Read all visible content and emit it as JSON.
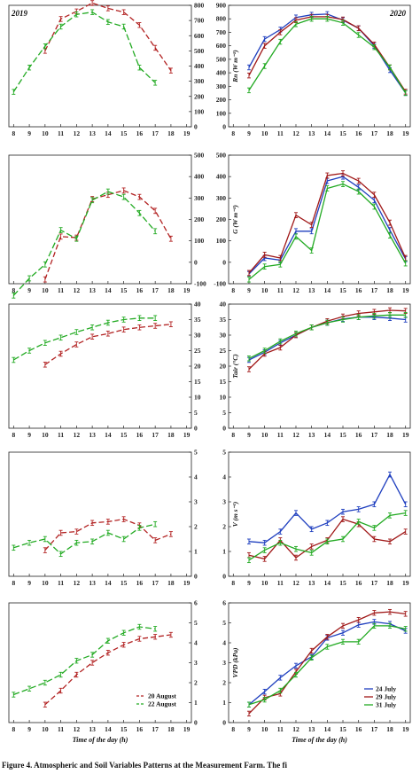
{
  "caption": "Figure 4. Atmospheric and Soil Variables Patterns at the Measurement Farm. The fi",
  "x_label": "Time of the day (h)",
  "years": {
    "left": "2019",
    "right": "2020"
  },
  "colors": {
    "20 August": "#b22222",
    "22 August": "#22aa22",
    "24 July": "#1f3fbf",
    "29 July": "#a01818",
    "31 July": "#22aa22"
  },
  "legend_2019": [
    "20 August",
    "22 August"
  ],
  "legend_2020": [
    "24 July",
    "29 July",
    "31 July"
  ],
  "chart_data": [
    {
      "type": "line",
      "panel": "2019-Rn",
      "x_ticks": [
        8,
        9,
        10,
        11,
        12,
        13,
        14,
        15,
        16,
        17,
        18,
        19
      ],
      "y_ticks": [
        0,
        100,
        200,
        300,
        400,
        500,
        600,
        700,
        800
      ],
      "ylim": [
        0,
        800
      ],
      "ylabel": "",
      "series": [
        {
          "name": "20 August",
          "x": [
            10,
            11,
            12,
            13,
            14,
            15,
            16,
            17,
            18
          ],
          "y": [
            500,
            710,
            760,
            815,
            780,
            755,
            670,
            520,
            370
          ]
        },
        {
          "name": "22 August",
          "x": [
            8,
            9,
            10,
            11,
            12,
            13,
            14,
            15,
            16,
            17
          ],
          "y": [
            230,
            390,
            530,
            660,
            740,
            755,
            690,
            660,
            390,
            290
          ]
        }
      ]
    },
    {
      "type": "line",
      "panel": "2020-Rn",
      "x_ticks": [
        8,
        9,
        10,
        11,
        12,
        13,
        14,
        15,
        16,
        17,
        18,
        19
      ],
      "y_ticks": [
        0,
        100,
        200,
        300,
        400,
        500,
        600,
        700,
        800,
        900
      ],
      "ylim": [
        0,
        900
      ],
      "ylabel": "Rn (W m⁻²)",
      "series": [
        {
          "name": "24 July",
          "x": [
            9,
            10,
            11,
            12,
            13,
            14,
            15,
            16,
            17,
            18,
            19
          ],
          "y": [
            440,
            650,
            720,
            810,
            830,
            835,
            790,
            730,
            600,
            420,
            250
          ]
        },
        {
          "name": "29 July",
          "x": [
            9,
            10,
            11,
            12,
            13,
            14,
            15,
            16,
            17,
            18,
            19
          ],
          "y": [
            380,
            600,
            700,
            790,
            815,
            815,
            795,
            730,
            610,
            440,
            260
          ]
        },
        {
          "name": "31 July",
          "x": [
            9,
            10,
            11,
            12,
            13,
            14,
            15,
            16,
            17,
            18,
            19
          ],
          "y": [
            270,
            450,
            630,
            760,
            800,
            800,
            770,
            680,
            590,
            440,
            250
          ]
        }
      ]
    },
    {
      "type": "line",
      "panel": "2019-G",
      "x_ticks": [
        8,
        9,
        10,
        11,
        12,
        13,
        14,
        15,
        16,
        17,
        18,
        19
      ],
      "y_ticks": [
        -100,
        0,
        100,
        200,
        300,
        400,
        500
      ],
      "ylim": [
        -100,
        500
      ],
      "ylabel": "",
      "series": [
        {
          "name": "20 August",
          "x": [
            10,
            11,
            12,
            13,
            14,
            15,
            16,
            17,
            18
          ],
          "y": [
            -80,
            120,
            115,
            295,
            315,
            335,
            305,
            240,
            110
          ]
        },
        {
          "name": "22 August",
          "x": [
            8,
            9,
            10,
            11,
            12,
            13,
            14,
            15,
            16,
            17
          ],
          "y": [
            -155,
            -75,
            -10,
            150,
            110,
            290,
            330,
            305,
            230,
            145
          ]
        }
      ]
    },
    {
      "type": "line",
      "panel": "2020-G",
      "x_ticks": [
        8,
        9,
        10,
        11,
        12,
        13,
        14,
        15,
        16,
        17,
        18,
        19
      ],
      "y_ticks": [
        -100,
        0,
        100,
        200,
        300,
        400,
        500
      ],
      "ylim": [
        -100,
        500
      ],
      "ylabel": "G (W m⁻²)",
      "series": [
        {
          "name": "24 July",
          "x": [
            9,
            10,
            11,
            12,
            13,
            14,
            15,
            16,
            17,
            18,
            19
          ],
          "y": [
            -55,
            20,
            10,
            145,
            145,
            380,
            400,
            350,
            290,
            150,
            15
          ]
        },
        {
          "name": "29 July",
          "x": [
            9,
            10,
            11,
            12,
            13,
            14,
            15,
            16,
            17,
            18,
            19
          ],
          "y": [
            -50,
            35,
            20,
            220,
            175,
            405,
            415,
            380,
            315,
            185,
            20
          ]
        },
        {
          "name": "31 July",
          "x": [
            9,
            10,
            11,
            12,
            13,
            14,
            15,
            16,
            17,
            18,
            19
          ],
          "y": [
            -80,
            -20,
            -10,
            120,
            55,
            345,
            365,
            330,
            260,
            125,
            -5
          ]
        }
      ]
    },
    {
      "type": "line",
      "panel": "2019-Tair",
      "x_ticks": [
        8,
        9,
        10,
        11,
        12,
        13,
        14,
        15,
        16,
        17,
        18,
        19
      ],
      "y_ticks": [
        0,
        5,
        10,
        15,
        20,
        25,
        30,
        35,
        40
      ],
      "ylim": [
        0,
        40
      ],
      "ylabel": "",
      "series": [
        {
          "name": "20 August",
          "x": [
            10,
            11,
            12,
            13,
            14,
            15,
            16,
            17,
            18
          ],
          "y": [
            20.5,
            24,
            27,
            29.5,
            30.5,
            31.8,
            32.5,
            33,
            33.5
          ]
        },
        {
          "name": "22 August",
          "x": [
            8,
            9,
            10,
            11,
            12,
            13,
            14,
            15,
            16,
            17
          ],
          "y": [
            22,
            25,
            27.5,
            29.2,
            31,
            32.5,
            34,
            35,
            35.5,
            35.5
          ]
        }
      ]
    },
    {
      "type": "line",
      "panel": "2020-Tair",
      "x_ticks": [
        8,
        9,
        10,
        11,
        12,
        13,
        14,
        15,
        16,
        17,
        18,
        19
      ],
      "y_ticks": [
        0,
        5,
        10,
        15,
        20,
        25,
        30,
        35,
        40
      ],
      "ylim": [
        0,
        40
      ],
      "ylabel": "Tair (°C)",
      "series": [
        {
          "name": "24 July",
          "x": [
            9,
            10,
            11,
            12,
            13,
            14,
            15,
            16,
            17,
            18,
            19
          ],
          "y": [
            22,
            24.5,
            27.5,
            30,
            32.5,
            34,
            35.2,
            35.8,
            35.8,
            35.5,
            35
          ]
        },
        {
          "name": "29 July",
          "x": [
            9,
            10,
            11,
            12,
            13,
            14,
            15,
            16,
            17,
            18,
            19
          ],
          "y": [
            19,
            24,
            26,
            30,
            32.5,
            34.5,
            36,
            37,
            37.5,
            38,
            37.8
          ]
        },
        {
          "name": "31 July",
          "x": [
            9,
            10,
            11,
            12,
            13,
            14,
            15,
            16,
            17,
            18,
            19
          ],
          "y": [
            22.5,
            25,
            28,
            30.5,
            32.5,
            34,
            35,
            35.8,
            36.2,
            36.5,
            36.5
          ]
        }
      ]
    },
    {
      "type": "line",
      "panel": "2019-V",
      "x_ticks": [
        8,
        9,
        10,
        11,
        12,
        13,
        14,
        15,
        16,
        17,
        18,
        19
      ],
      "y_ticks": [
        0,
        1,
        2,
        3,
        4,
        5
      ],
      "ylim": [
        0,
        5
      ],
      "ylabel": "",
      "series": [
        {
          "name": "20 August",
          "x": [
            10,
            11,
            12,
            13,
            14,
            15,
            16,
            17,
            18
          ],
          "y": [
            1.05,
            1.75,
            1.8,
            2.15,
            2.2,
            2.3,
            2.05,
            1.45,
            1.7
          ]
        },
        {
          "name": "22 August",
          "x": [
            8,
            9,
            10,
            11,
            12,
            13,
            14,
            15,
            16,
            17
          ],
          "y": [
            1.15,
            1.35,
            1.5,
            0.9,
            1.35,
            1.4,
            1.75,
            1.5,
            1.95,
            2.1
          ]
        }
      ]
    },
    {
      "type": "line",
      "panel": "2020-V",
      "x_ticks": [
        8,
        9,
        10,
        11,
        12,
        13,
        14,
        15,
        16,
        17,
        18,
        19
      ],
      "y_ticks": [
        0,
        1,
        2,
        3,
        4,
        5
      ],
      "ylim": [
        0,
        5
      ],
      "ylabel": "V (m s⁻¹)",
      "series": [
        {
          "name": "24 July",
          "x": [
            9,
            10,
            11,
            12,
            13,
            14,
            15,
            16,
            17,
            18,
            19
          ],
          "y": [
            1.4,
            1.35,
            1.8,
            2.55,
            1.9,
            2.15,
            2.6,
            2.7,
            2.9,
            4.1,
            2.9
          ]
        },
        {
          "name": "29 July",
          "x": [
            9,
            10,
            11,
            12,
            13,
            14,
            15,
            16,
            17,
            18,
            19
          ],
          "y": [
            0.85,
            0.7,
            1.45,
            0.75,
            1.2,
            1.45,
            2.3,
            2.1,
            1.5,
            1.4,
            1.8
          ]
        },
        {
          "name": "31 July",
          "x": [
            9,
            10,
            11,
            12,
            13,
            14,
            15,
            16,
            17,
            18,
            19
          ],
          "y": [
            0.65,
            1.05,
            1.35,
            1.1,
            0.95,
            1.4,
            1.5,
            2.2,
            1.95,
            2.45,
            2.55
          ]
        }
      ]
    },
    {
      "type": "line",
      "panel": "2019-VPD",
      "x_ticks": [
        8,
        9,
        10,
        11,
        12,
        13,
        14,
        15,
        16,
        17,
        18,
        19
      ],
      "y_ticks": [
        0,
        1,
        2,
        3,
        4,
        5,
        6
      ],
      "ylim": [
        0,
        6
      ],
      "ylabel": "",
      "series": [
        {
          "name": "20 August",
          "x": [
            10,
            11,
            12,
            13,
            14,
            15,
            16,
            17,
            18
          ],
          "y": [
            0.9,
            1.6,
            2.4,
            3.0,
            3.5,
            3.9,
            4.2,
            4.3,
            4.4
          ]
        },
        {
          "name": "22 August",
          "x": [
            8,
            9,
            10,
            11,
            12,
            13,
            14,
            15,
            16,
            17
          ],
          "y": [
            1.4,
            1.7,
            2.0,
            2.4,
            3.1,
            3.4,
            4.1,
            4.5,
            4.8,
            4.7
          ]
        }
      ]
    },
    {
      "type": "line",
      "panel": "2020-VPD",
      "x_ticks": [
        8,
        9,
        10,
        11,
        12,
        13,
        14,
        15,
        16,
        17,
        18,
        19
      ],
      "y_ticks": [
        0,
        1,
        2,
        3,
        4,
        5,
        6
      ],
      "ylim": [
        0,
        6
      ],
      "ylabel": "VPD (kPa)",
      "series": [
        {
          "name": "24 July",
          "x": [
            9,
            10,
            11,
            12,
            13,
            14,
            15,
            16,
            17,
            18,
            19
          ],
          "y": [
            0.9,
            1.55,
            2.25,
            2.85,
            3.3,
            4.25,
            4.5,
            4.9,
            5.05,
            4.95,
            4.6
          ]
        },
        {
          "name": "29 July",
          "x": [
            9,
            10,
            11,
            12,
            13,
            14,
            15,
            16,
            17,
            18,
            19
          ],
          "y": [
            0.45,
            1.25,
            1.45,
            2.55,
            3.6,
            4.3,
            4.85,
            5.15,
            5.5,
            5.55,
            5.45
          ]
        },
        {
          "name": "31 July",
          "x": [
            9,
            10,
            11,
            12,
            13,
            14,
            15,
            16,
            17,
            18,
            19
          ],
          "y": [
            0.9,
            1.15,
            1.6,
            2.4,
            3.25,
            3.8,
            4.05,
            4.05,
            4.85,
            4.85,
            4.7
          ]
        }
      ]
    }
  ]
}
